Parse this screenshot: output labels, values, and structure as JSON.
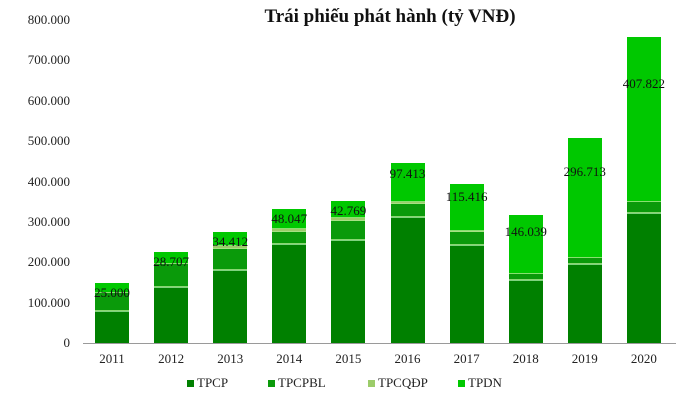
{
  "chart_data": {
    "type": "bar",
    "stacked": true,
    "title": "Trái phiếu phát hành (tỷ VNĐ)",
    "xlabel": "",
    "ylabel": "",
    "ylim": [
      0,
      800000
    ],
    "yticks": [
      "0",
      "100.000",
      "200.000",
      "300.000",
      "400.000",
      "500.000",
      "600.000",
      "700.000",
      "800.000"
    ],
    "ytick_values": [
      0,
      100000,
      200000,
      300000,
      400000,
      500000,
      600000,
      700000,
      800000
    ],
    "grid": false,
    "legend_position": "bottom",
    "categories": [
      "2011",
      "2012",
      "2013",
      "2014",
      "2015",
      "2016",
      "2017",
      "2018",
      "2019",
      "2020"
    ],
    "series": [
      {
        "name": "TPCP",
        "color": "#008000",
        "values": [
          79000,
          139000,
          181000,
          245000,
          255000,
          312000,
          243000,
          156000,
          196000,
          322000
        ]
      },
      {
        "name": "TPCPBL",
        "color": "#0a9a0a",
        "values": [
          44000,
          57000,
          52000,
          30000,
          47000,
          32000,
          32000,
          14000,
          14000,
          27000
        ]
      },
      {
        "name": "TPCQĐP",
        "color": "#9ccc6a",
        "values": [
          0,
          0,
          8000,
          8000,
          8000,
          5000,
          3000,
          0,
          0,
          0
        ]
      },
      {
        "name": "TPDN",
        "color": "#00c800",
        "values": [
          25000,
          28707,
          34412,
          48047,
          42769,
          97413,
          115416,
          146039,
          296713,
          407822
        ]
      }
    ],
    "data_labels": [
      "25.000",
      "28.707",
      "34.412",
      "48.047",
      "42.769",
      "97.413",
      "115.416",
      "146.039",
      "296.713",
      "407.822"
    ]
  }
}
